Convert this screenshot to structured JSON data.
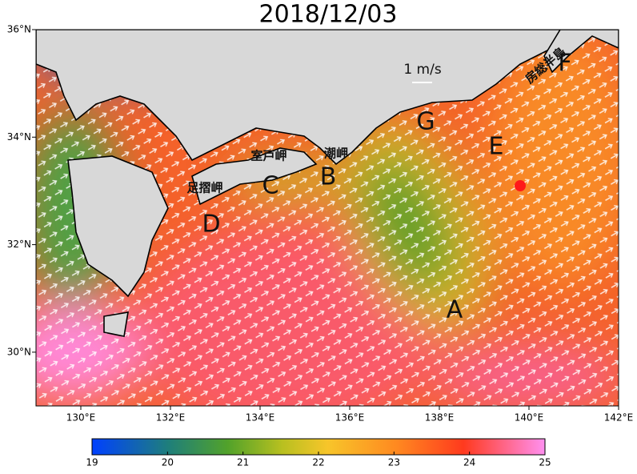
{
  "title": "2018/12/03",
  "map": {
    "xlim": [
      129,
      142
    ],
    "ylim": [
      29,
      36
    ],
    "xticks": [
      {
        "value": 130,
        "label": "130°E"
      },
      {
        "value": 132,
        "label": "132°E"
      },
      {
        "value": 134,
        "label": "134°E"
      },
      {
        "value": 136,
        "label": "136°E"
      },
      {
        "value": 138,
        "label": "138°E"
      },
      {
        "value": 140,
        "label": "140°E"
      },
      {
        "value": 142,
        "label": "142°E"
      }
    ],
    "yticks": [
      {
        "value": 30,
        "label": "30°N"
      },
      {
        "value": 32,
        "label": "32°N"
      },
      {
        "value": 34,
        "label": "34°N"
      },
      {
        "value": 36,
        "label": "36°N"
      }
    ],
    "scale_label": "1 m/s",
    "points": [
      "A",
      "B",
      "C",
      "D",
      "E",
      "F",
      "G"
    ],
    "places": [
      "室戸岬",
      "足摺岬",
      "潮岬",
      "房総半島"
    ]
  },
  "colorbar": {
    "lim": [
      19,
      25
    ],
    "ticks": [
      19,
      20,
      21,
      22,
      23,
      24,
      25
    ]
  }
}
